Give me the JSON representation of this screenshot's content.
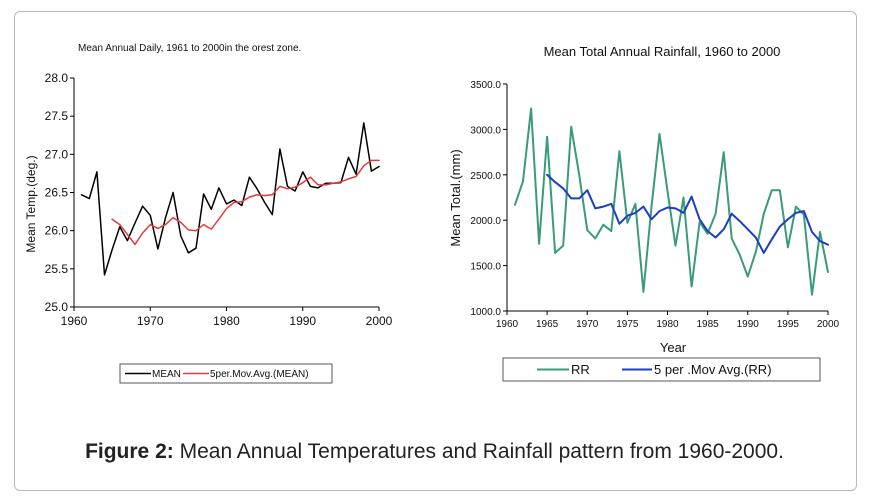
{
  "caption": {
    "label": "Figure 2:",
    "text": "Mean Annual Temperatures and Rainfall pattern from 1960-2000."
  },
  "chart_data": [
    {
      "type": "line",
      "title": "Mean Annual Daily, 1961 to 2000in the orest zone.",
      "xlabel": "",
      "ylabel": "Mean Temp.(deg.)",
      "xlim": [
        1960,
        2000
      ],
      "ylim": [
        25.0,
        28.0
      ],
      "xticks": [
        "1960",
        "1970",
        "1980",
        "1990",
        "2000"
      ],
      "yticks": [
        "25.0",
        "25.5",
        "26.0",
        "26.5",
        "27.0",
        "27.5",
        "28.0"
      ],
      "legend": "bottom",
      "grid": false,
      "series": [
        {
          "name": "MEAN",
          "color": "#000000",
          "x": [
            1961,
            1962,
            1963,
            1964,
            1965,
            1966,
            1967,
            1968,
            1969,
            1970,
            1971,
            1972,
            1973,
            1974,
            1975,
            1976,
            1977,
            1978,
            1979,
            1980,
            1981,
            1982,
            1983,
            1984,
            1985,
            1986,
            1987,
            1988,
            1989,
            1990,
            1991,
            1992,
            1993,
            1994,
            1995,
            1996,
            1997,
            1998,
            1999,
            2000
          ],
          "values": [
            26.47,
            26.42,
            26.77,
            25.42,
            25.75,
            26.05,
            25.87,
            26.1,
            26.32,
            26.2,
            25.76,
            26.17,
            26.5,
            25.93,
            25.71,
            25.77,
            26.48,
            26.28,
            26.56,
            26.35,
            26.4,
            26.33,
            26.7,
            26.55,
            26.37,
            26.21,
            27.07,
            26.58,
            26.52,
            26.77,
            26.58,
            26.56,
            26.62,
            26.62,
            26.63,
            26.96,
            26.74,
            27.41,
            26.78,
            26.84
          ]
        },
        {
          "name": "5per.Mov.Avg.(MEAN)",
          "color": "#e23b3b",
          "x": [
            1965,
            1966,
            1967,
            1968,
            1969,
            1970,
            1971,
            1972,
            1973,
            1974,
            1975,
            1976,
            1977,
            1978,
            1979,
            1980,
            1981,
            1982,
            1983,
            1984,
            1985,
            1986,
            1987,
            1988,
            1989,
            1990,
            1991,
            1992,
            1993,
            1994,
            1995,
            1996,
            1997,
            1998,
            1999,
            2000
          ],
          "values": [
            26.15,
            26.08,
            25.95,
            25.82,
            25.97,
            26.08,
            26.03,
            26.08,
            26.17,
            26.11,
            26.01,
            26.0,
            26.08,
            26.02,
            26.15,
            26.29,
            26.37,
            26.38,
            26.44,
            26.47,
            26.46,
            26.47,
            26.58,
            26.55,
            26.57,
            26.63,
            26.7,
            26.6,
            26.6,
            26.62,
            26.64,
            26.68,
            26.71,
            26.85,
            26.92,
            26.92
          ]
        }
      ]
    },
    {
      "type": "line",
      "title": "Mean Total Annual Rainfall, 1960 to 2000",
      "xlabel": "Year",
      "ylabel": "Mean  Total.(mm)",
      "xlim": [
        1960,
        2000
      ],
      "ylim": [
        1000.0,
        3500.0
      ],
      "xticks": [
        "1960",
        "1965",
        "1970",
        "1975",
        "1980",
        "1985",
        "1990",
        "1995",
        "2000"
      ],
      "yticks": [
        "1000.0",
        "1500.0",
        "2000.0",
        "2500.0",
        "3000.0",
        "3500.0"
      ],
      "legend": "bottom",
      "grid": false,
      "series": [
        {
          "name": "RR",
          "color": "#3a9a7a",
          "x": [
            1961,
            1962,
            1963,
            1964,
            1965,
            1966,
            1967,
            1968,
            1969,
            1970,
            1971,
            1972,
            1973,
            1974,
            1975,
            1976,
            1977,
            1978,
            1979,
            1980,
            1981,
            1982,
            1983,
            1984,
            1985,
            1986,
            1987,
            1988,
            1989,
            1990,
            1991,
            1992,
            1993,
            1994,
            1995,
            1996,
            1997,
            1998,
            1999,
            2000
          ],
          "values": [
            2170,
            2430,
            3230,
            1740,
            2920,
            1640,
            1720,
            3030,
            2500,
            1890,
            1800,
            1950,
            1880,
            2760,
            1970,
            2180,
            1210,
            2150,
            2950,
            2320,
            1720,
            2250,
            1270,
            1980,
            1850,
            2070,
            2750,
            1800,
            1620,
            1380,
            1650,
            2070,
            2330,
            2330,
            1700,
            2150,
            2060,
            1180,
            1870,
            1430
          ]
        },
        {
          "name": "5 per .Mov  Avg.(RR)",
          "color": "#1a3fc4",
          "x": [
            1965,
            1966,
            1967,
            1968,
            1969,
            1970,
            1971,
            1972,
            1973,
            1974,
            1975,
            1976,
            1977,
            1978,
            1979,
            1980,
            1981,
            1982,
            1983,
            1984,
            1985,
            1986,
            1987,
            1988,
            1989,
            1990,
            1991,
            1992,
            1993,
            1994,
            1995,
            1996,
            1997,
            1998,
            1999,
            2000
          ],
          "values": [
            2500,
            2420,
            2350,
            2240,
            2240,
            2330,
            2130,
            2150,
            2180,
            1960,
            2050,
            2080,
            2150,
            2010,
            2100,
            2140,
            2130,
            2080,
            2260,
            2010,
            1880,
            1810,
            1900,
            2070,
            1990,
            1900,
            1810,
            1640,
            1790,
            1930,
            2010,
            2080,
            2100,
            1870,
            1770,
            1730
          ]
        }
      ]
    }
  ]
}
